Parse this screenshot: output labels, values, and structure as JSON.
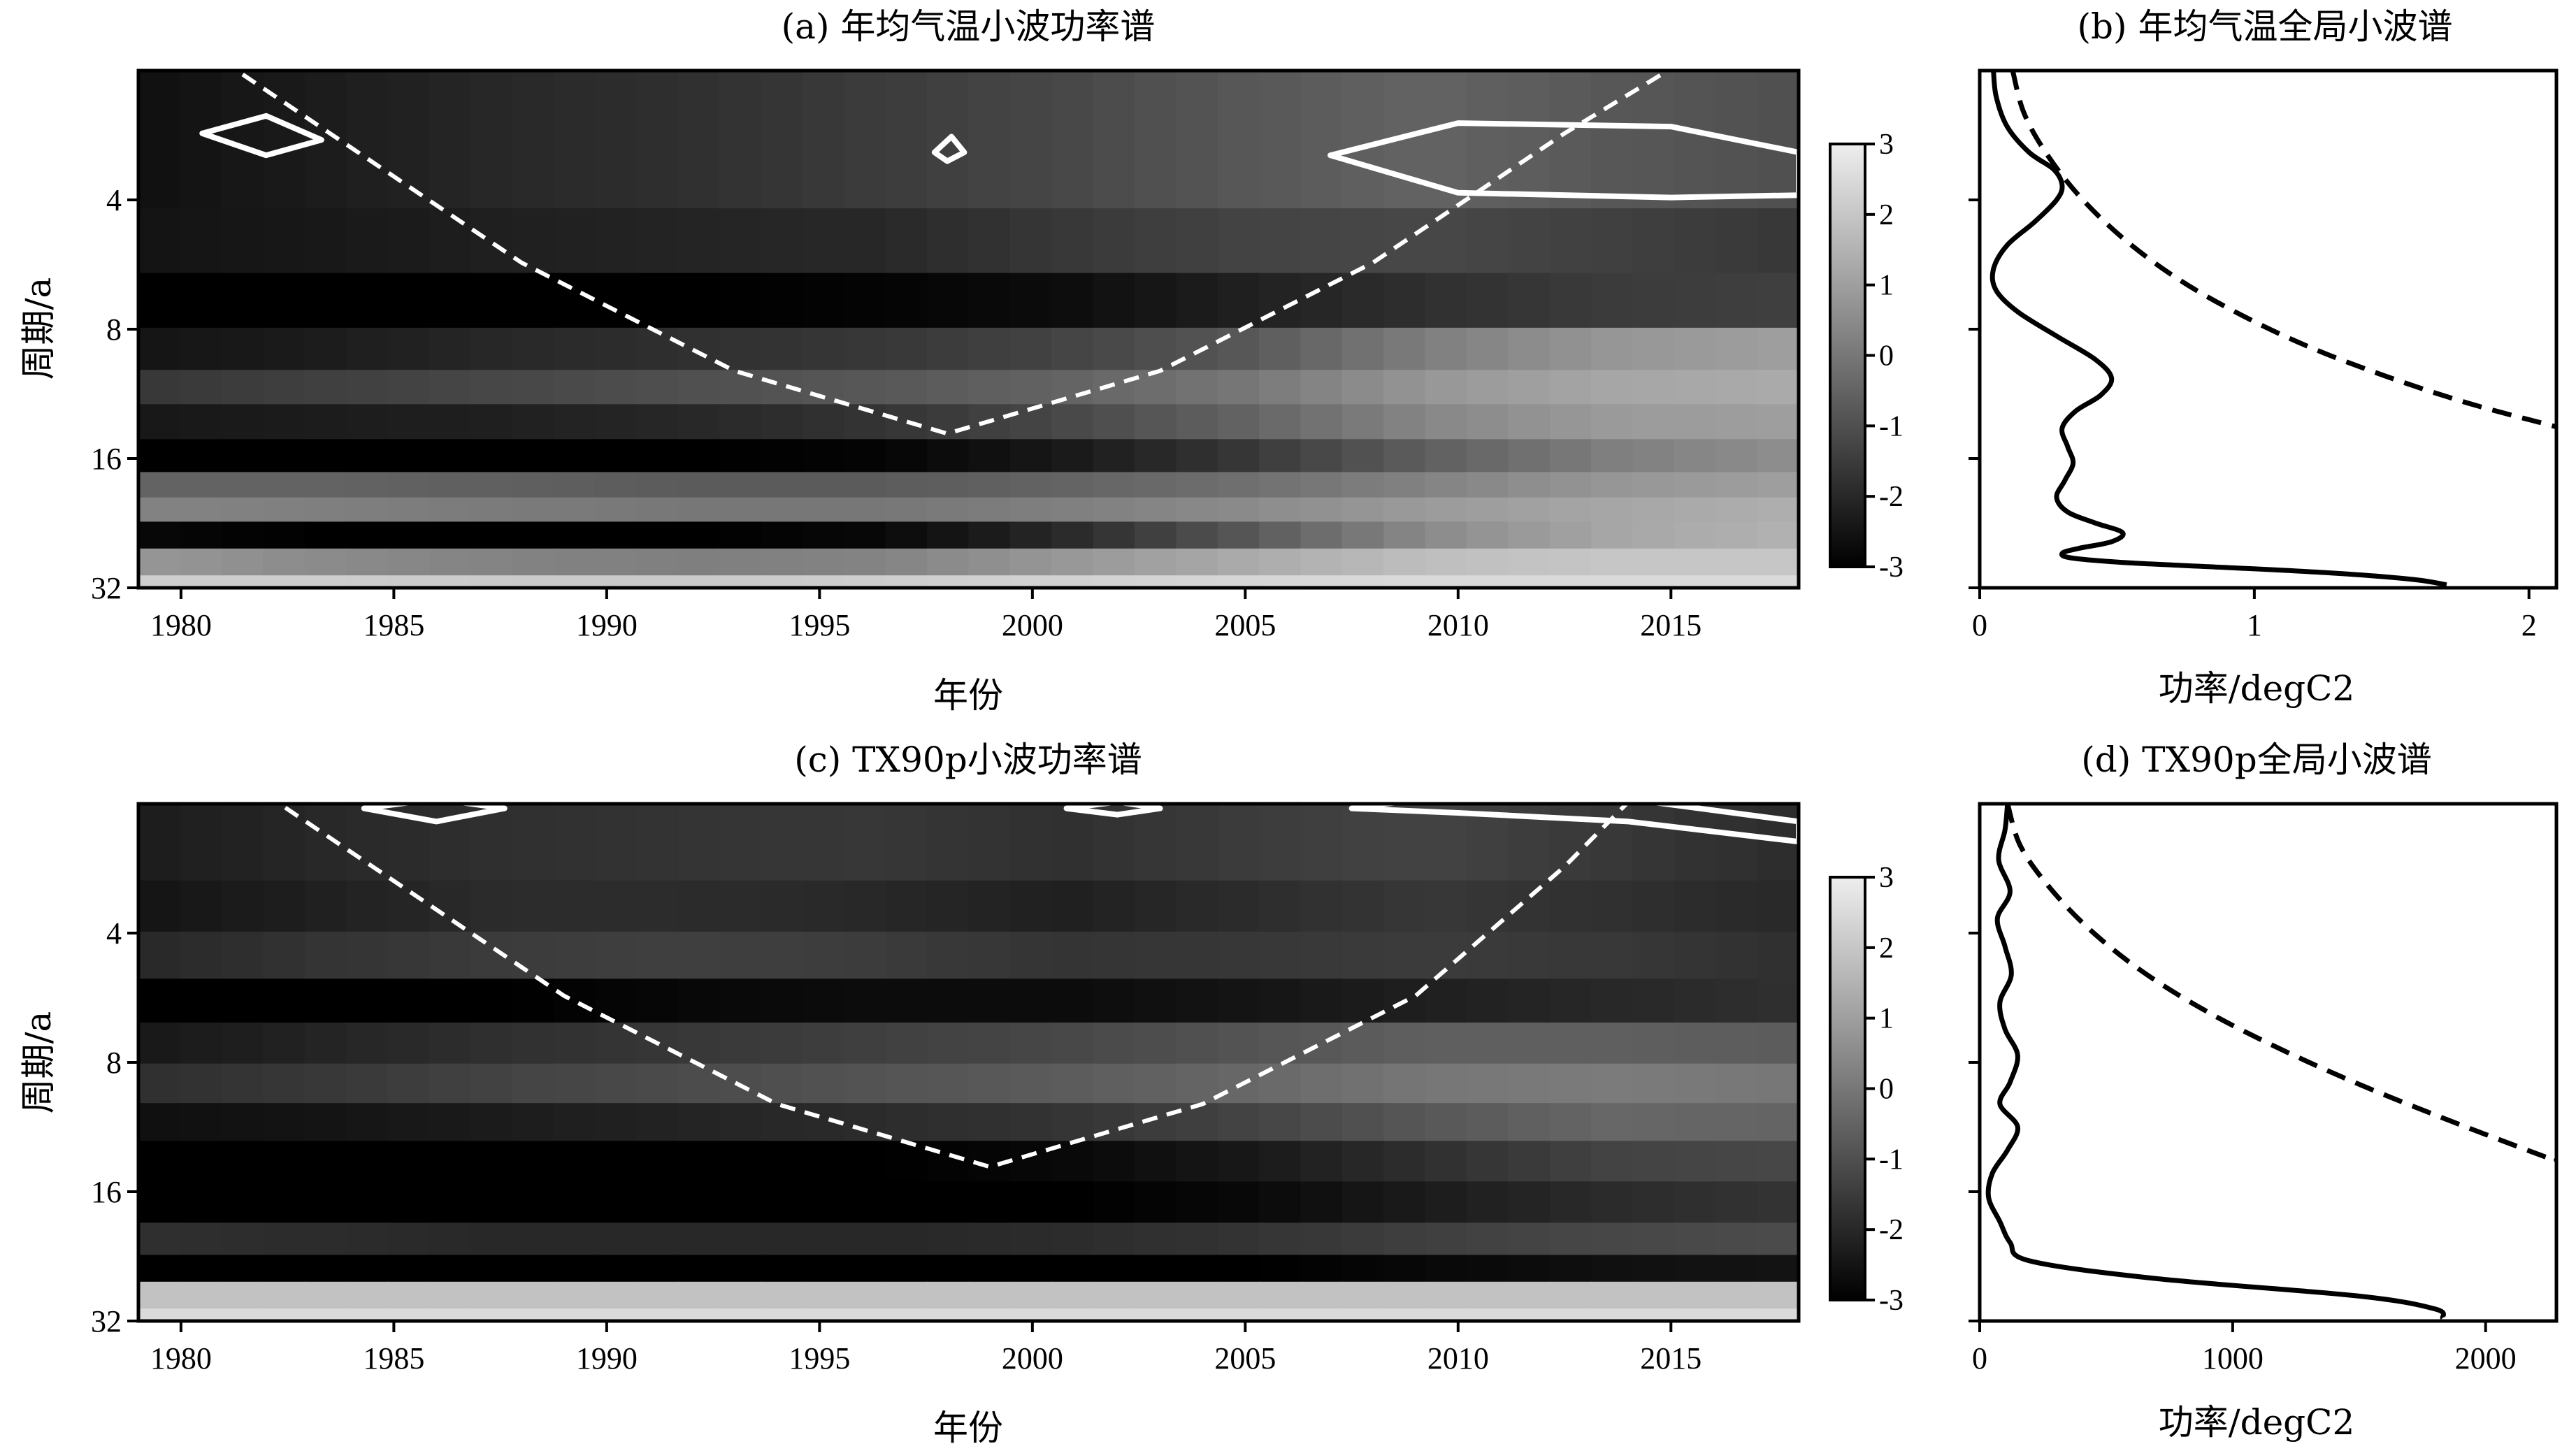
{
  "chart_data": [
    {
      "id": "a",
      "type": "heatmap",
      "title": "(a) 年均气温小波功率谱",
      "xlabel": "年份",
      "ylabel": "周期/a",
      "xlim": [
        1979,
        2018
      ],
      "ylim": [
        2,
        32
      ],
      "y_scale": "log2",
      "y_reversed": true,
      "x_ticks": [
        1980,
        1985,
        1990,
        1995,
        2000,
        2005,
        2010,
        2015
      ],
      "y_ticks": [
        4,
        8,
        16,
        32
      ],
      "colorbar": {
        "ticks": [
          3,
          2,
          1,
          0,
          -1,
          -2,
          -3
        ],
        "range": [
          -3,
          3
        ],
        "colormap": "gray"
      },
      "cone_of_influence": {
        "x": [
          1979,
          1983.5,
          1988,
          1993,
          1998,
          2003,
          2008,
          2012.5,
          2017.5
        ],
        "y": [
          1.4,
          2.8,
          5.6,
          10,
          14,
          10,
          5.6,
          2.8,
          1.4
        ]
      },
      "significance_contours": [
        {
          "x": [
            1980.5,
            1982,
            1983.3,
            1982,
            1980.5
          ],
          "y": [
            2.8,
            2.55,
            2.9,
            3.15,
            2.8
          ]
        },
        {
          "x": [
            1997.7,
            1998.1,
            1998.4,
            1998.0,
            1997.7
          ],
          "y": [
            3.1,
            2.85,
            3.1,
            3.25,
            3.1
          ]
        },
        {
          "x": [
            2007,
            2010,
            2015,
            2018,
            2018,
            2015,
            2010,
            2007
          ],
          "y": [
            3.15,
            2.65,
            2.7,
            3.1,
            3.9,
            3.95,
            3.85,
            3.15
          ]
        }
      ],
      "bands": [
        {
          "period": 3.5,
          "values": [
            -2.6,
            -2.3,
            -2.0,
            -1.8,
            -1.5,
            -1.2,
            -0.8,
            -0.5,
            -0.8,
            -1.0
          ]
        },
        {
          "period": 5,
          "values": [
            -2.5,
            -2.4,
            -2.2,
            -2.1,
            -2.0,
            -1.6,
            -1.3,
            -1.2,
            -1.4,
            -1.6
          ]
        },
        {
          "period": 7,
          "values": [
            -3,
            -3,
            -3,
            -3,
            -2.9,
            -2.7,
            -2.2,
            -1.8,
            -1.5,
            -1.4
          ]
        },
        {
          "period": 9,
          "values": [
            -2.5,
            -2.3,
            -2.0,
            -1.8,
            -1.6,
            -1.3,
            -0.8,
            0.2,
            0.8,
            1.0
          ]
        },
        {
          "period": 11,
          "values": [
            -1.6,
            -1.4,
            -1.2,
            -1.0,
            -0.8,
            -0.5,
            0.0,
            0.8,
            1.2,
            1.3
          ]
        },
        {
          "period": 13,
          "values": [
            -2.4,
            -2.3,
            -2.2,
            -2.0,
            -1.7,
            -1.2,
            -0.5,
            0.4,
            0.9,
            1.0
          ]
        },
        {
          "period": 16,
          "values": [
            -3,
            -3,
            -3,
            -3,
            -2.9,
            -2.4,
            -1.6,
            -0.6,
            0.2,
            0.6
          ]
        },
        {
          "period": 18.5,
          "values": [
            -0.5,
            -0.5,
            -0.6,
            -0.7,
            -0.7,
            -0.5,
            -0.2,
            0.3,
            0.8,
            1.0
          ]
        },
        {
          "period": 21,
          "values": [
            0.3,
            0.2,
            0.1,
            0.0,
            0.0,
            0.2,
            0.5,
            0.9,
            1.2,
            1.4
          ]
        },
        {
          "period": 24,
          "values": [
            -2.8,
            -3,
            -3,
            -3,
            -2.8,
            -2.0,
            -0.8,
            0.5,
            1.2,
            1.5
          ]
        },
        {
          "period": 28,
          "values": [
            0.8,
            0.5,
            0.3,
            0.2,
            0.3,
            0.8,
            1.3,
            1.8,
            2.0,
            2.0
          ]
        },
        {
          "period": 32,
          "values": [
            2.2,
            2.2,
            2.1,
            2.1,
            2.2,
            2.3,
            2.4,
            2.5,
            2.5,
            2.5
          ]
        }
      ]
    },
    {
      "id": "b",
      "type": "line",
      "title": "(b) 年均气温全局小波谱",
      "xlabel": "功率/degC2",
      "xlim": [
        0,
        2.1
      ],
      "ylim": [
        2,
        32
      ],
      "y_scale": "log2",
      "y_reversed": true,
      "x_ticks": [
        0,
        1,
        2
      ],
      "y_ticks": [
        4,
        8,
        16,
        32
      ],
      "series": [
        {
          "style": "solid",
          "x": [
            0.05,
            0.06,
            0.1,
            0.18,
            0.27,
            0.3,
            0.28,
            0.2,
            0.1,
            0.05,
            0.06,
            0.14,
            0.28,
            0.42,
            0.48,
            0.44,
            0.35,
            0.3,
            0.32,
            0.34,
            0.31,
            0.28,
            0.32,
            0.42,
            0.52,
            0.48,
            0.36,
            0.3,
            0.34,
            0.55,
            0.9,
            1.3,
            1.58,
            1.7
          ],
          "y": [
            2,
            2.3,
            2.7,
            3.1,
            3.4,
            3.7,
            4.0,
            4.5,
            5.1,
            5.8,
            6.5,
            7.3,
            8.3,
            9.4,
            10.4,
            11.4,
            12.4,
            13.6,
            15.0,
            16.4,
            18.0,
            19.7,
            21.3,
            22.6,
            23.8,
            25.0,
            25.9,
            26.6,
            27.3,
            28.0,
            28.7,
            29.6,
            30.6,
            31.5
          ]
        },
        {
          "style": "dashed",
          "x": [
            0.12,
            0.16,
            0.24,
            0.36,
            0.52,
            0.72,
            0.95,
            1.2,
            1.48,
            1.78,
            2.1
          ],
          "y": [
            2,
            2.5,
            3.1,
            3.9,
            4.9,
            6.1,
            7.4,
            8.8,
            10.3,
            11.9,
            13.5
          ]
        }
      ]
    },
    {
      "id": "c",
      "type": "heatmap",
      "title": "(c) TX90p小波功率谱",
      "xlabel": "年份",
      "ylabel": "周期/a",
      "xlim": [
        1979,
        2018
      ],
      "ylim": [
        2,
        32
      ],
      "y_scale": "log2",
      "y_reversed": true,
      "x_ticks": [
        1980,
        1985,
        1990,
        1995,
        2000,
        2005,
        2010,
        2015
      ],
      "y_ticks": [
        4,
        8,
        16,
        32
      ],
      "colorbar": {
        "ticks": [
          3,
          2,
          1,
          0,
          -1,
          -2,
          -3
        ],
        "range": [
          -3,
          3
        ],
        "colormap": "gray"
      },
      "cone_of_influence": {
        "x": [
          1980,
          1984.5,
          1989,
          1994,
          1999,
          2004,
          2009,
          2012.5,
          2015.5
        ],
        "y": [
          1.4,
          2.8,
          5.6,
          10,
          14,
          10,
          5.6,
          2.8,
          1.4
        ]
      },
      "significance_contours": [
        {
          "x": [
            1984.3,
            1986,
            1987.6,
            1986,
            1984.3
          ],
          "y": [
            2.05,
            1.95,
            2.05,
            2.2,
            2.05
          ]
        },
        {
          "x": [
            2000.8,
            2002,
            2003,
            2002,
            2000.8
          ],
          "y": [
            2.05,
            1.98,
            2.05,
            2.12,
            2.05
          ]
        },
        {
          "x": [
            2007.5,
            2010,
            2014,
            2018,
            2018,
            2014,
            2010,
            2007.5
          ],
          "y": [
            2.05,
            1.9,
            1.95,
            2.2,
            2.45,
            2.2,
            2.1,
            2.05
          ]
        }
      ],
      "bands": [
        {
          "period": 2.6,
          "values": [
            -2.3,
            -2.0,
            -1.8,
            -1.7,
            -1.6,
            -1.8,
            -1.5,
            -1.3,
            -1.6,
            -1.9
          ]
        },
        {
          "period": 3.5,
          "values": [
            -2.5,
            -2.2,
            -1.9,
            -1.9,
            -2.0,
            -2.2,
            -1.9,
            -1.6,
            -1.8,
            -2.0
          ]
        },
        {
          "period": 4.5,
          "values": [
            -2.0,
            -1.7,
            -1.5,
            -1.4,
            -1.5,
            -1.7,
            -1.6,
            -1.5,
            -1.6,
            -1.8
          ]
        },
        {
          "period": 5.8,
          "values": [
            -3,
            -3,
            -3,
            -2.8,
            -2.7,
            -2.7,
            -2.5,
            -2.2,
            -2.0,
            -1.8
          ]
        },
        {
          "period": 7.2,
          "values": [
            -2.4,
            -2.1,
            -1.8,
            -1.6,
            -1.4,
            -1.2,
            -0.9,
            -0.6,
            -0.6,
            -0.7
          ]
        },
        {
          "period": 9,
          "values": [
            -1.8,
            -1.6,
            -1.3,
            -1.1,
            -0.9,
            -0.7,
            -0.4,
            0.0,
            0.1,
            0.0
          ]
        },
        {
          "period": 11,
          "values": [
            -2.6,
            -2.5,
            -2.3,
            -2.1,
            -1.9,
            -1.7,
            -1.3,
            -0.8,
            -0.4,
            -0.5
          ]
        },
        {
          "period": 13.5,
          "values": [
            -3,
            -3,
            -3,
            -3,
            -3,
            -2.8,
            -2.4,
            -1.8,
            -1.3,
            -1.2
          ]
        },
        {
          "period": 17,
          "values": [
            -3,
            -3,
            -3,
            -3,
            -3,
            -3,
            -2.8,
            -2.3,
            -1.9,
            -1.7
          ]
        },
        {
          "period": 21,
          "values": [
            -1.8,
            -1.9,
            -2.0,
            -2.0,
            -2.0,
            -1.9,
            -1.7,
            -1.4,
            -1.2,
            -1.1
          ]
        },
        {
          "period": 24,
          "values": [
            -3,
            -3,
            -3,
            -3,
            -3,
            -3,
            -3,
            -2.8,
            -2.6,
            -2.5
          ]
        },
        {
          "period": 28,
          "values": [
            1.9,
            1.9,
            1.9,
            1.9,
            1.9,
            1.9,
            1.9,
            1.9,
            1.9,
            1.9
          ]
        },
        {
          "period": 32,
          "values": [
            2.5,
            2.5,
            2.5,
            2.5,
            2.5,
            2.5,
            2.5,
            2.5,
            2.5,
            2.5
          ]
        }
      ]
    },
    {
      "id": "d",
      "type": "line",
      "title": "(d) TX90p全局小波谱",
      "xlabel": "功率/degC2",
      "xlim": [
        0,
        2280
      ],
      "ylim": [
        2,
        32
      ],
      "y_scale": "log2",
      "y_reversed": true,
      "x_ticks": [
        0,
        1000,
        2000
      ],
      "y_ticks": [
        4,
        8,
        16,
        32
      ],
      "series": [
        {
          "style": "solid",
          "x": [
            110,
            100,
            75,
            120,
            70,
            100,
            125,
            80,
            100,
            150,
            120,
            80,
            150,
            110,
            50,
            35,
            80,
            120,
            200,
            700,
            1500,
            1800,
            1830
          ],
          "y": [
            2,
            2.3,
            2.7,
            3.2,
            3.7,
            4.3,
            5.0,
            5.8,
            6.7,
            7.7,
            8.9,
            10.0,
            11.3,
            12.8,
            14.5,
            16.5,
            18.8,
            21.0,
            23.2,
            25.5,
            28.0,
            30.0,
            31.5
          ]
        },
        {
          "style": "dashed",
          "x": [
            110,
            160,
            270,
            430,
            640,
            900,
            1200,
            1520,
            1870,
            2240,
            2280
          ],
          "y": [
            2,
            2.5,
            3.1,
            3.9,
            4.9,
            6.1,
            7.5,
            9.1,
            11.0,
            13.3,
            13.5
          ]
        }
      ]
    }
  ]
}
